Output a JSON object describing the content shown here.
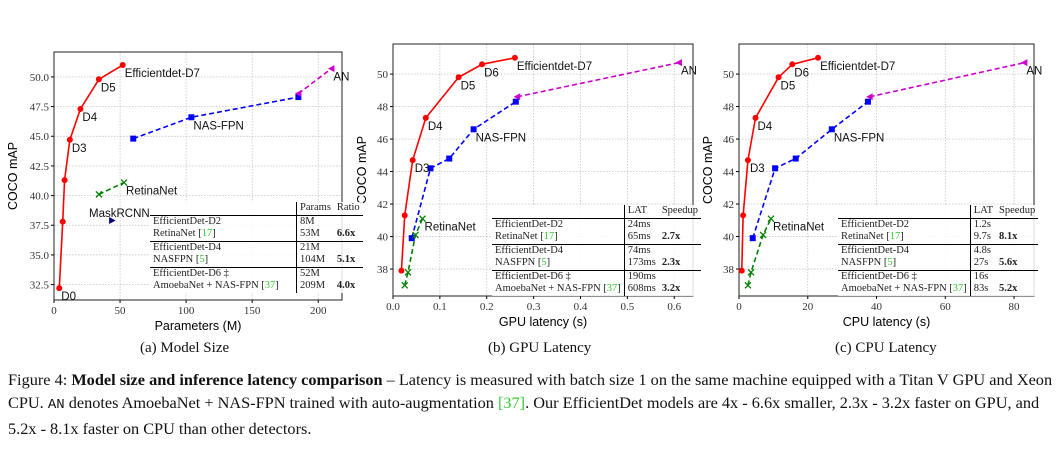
{
  "chart_data": [
    {
      "id": "a",
      "type": "line",
      "xlabel": "Parameters (M)",
      "ylabel": "COCO mAP",
      "xlim": [
        0,
        218
      ],
      "ylim": [
        31.2,
        52.1
      ],
      "xticks": [
        "0",
        "50",
        "100",
        "150",
        "200"
      ],
      "yticks": [
        "32.5",
        "35.0",
        "37.5",
        "40.0",
        "42.5",
        "45.0",
        "47.5",
        "50.0"
      ],
      "grid": true,
      "series": [
        {
          "name": "EfficientDet",
          "color": "#ff0000",
          "marker": "circle",
          "dash": false,
          "x": [
            4,
            6.6,
            8,
            12,
            20,
            34,
            52
          ],
          "y": [
            32.2,
            37.8,
            41.3,
            44.7,
            47.3,
            49.8,
            51.0
          ]
        },
        {
          "name": "NAS-FPN",
          "color": "#0000ff",
          "marker": "square",
          "dash": true,
          "x": [
            60,
            104,
            185
          ],
          "y": [
            44.8,
            46.6,
            48.3
          ]
        },
        {
          "name": "AN",
          "color": "#cc00cc",
          "marker": "triangle-left",
          "dash": true,
          "x": [
            185,
            210
          ],
          "y": [
            48.6,
            50.7
          ]
        },
        {
          "name": "RetinaNet",
          "color": "#008000",
          "marker": "x",
          "dash": true,
          "x": [
            34,
            53
          ],
          "y": [
            40.1,
            41.1
          ]
        },
        {
          "name": "MaskRCNN",
          "color": "#000080",
          "marker": "triangle-right",
          "dash": false,
          "x": [
            44
          ],
          "y": [
            37.9
          ]
        }
      ],
      "annotations": [
        {
          "text": "D0",
          "x": 4,
          "y": 32.2
        },
        {
          "text": "D3",
          "x": 12,
          "y": 44.7
        },
        {
          "text": "D4",
          "x": 20,
          "y": 47.3
        },
        {
          "text": "D5",
          "x": 34,
          "y": 49.8
        },
        {
          "text": "Efficientdet-D7",
          "x": 52,
          "y": 51.0
        },
        {
          "text": "NAS-FPN",
          "x": 104,
          "y": 46.6
        },
        {
          "text": "RetinaNet",
          "x": 53,
          "y": 41.1
        },
        {
          "text": "AN",
          "x": 210,
          "y": 50.7
        },
        {
          "text": "MaskRCNN",
          "x": 25,
          "y": 39.2
        }
      ],
      "table": {
        "headers": [
          "",
          "Params",
          "Ratio"
        ],
        "rows": [
          [
            "EfficientDet-D2",
            "",
            "8M",
            ""
          ],
          [
            "RetinaNet",
            "17",
            "53M",
            "6.6x"
          ],
          [
            "EfficientDet-D4",
            "",
            "21M",
            ""
          ],
          [
            "NASFPN",
            "5",
            "104M",
            "5.1x"
          ],
          [
            "EfficientDet-D6 ‡",
            "",
            "52M",
            ""
          ],
          [
            "AmoebaNet + NAS-FPN",
            "37",
            "209M",
            "4.0x"
          ]
        ]
      },
      "caption": "(a) Model Size"
    },
    {
      "id": "b",
      "type": "line",
      "xlabel": "GPU latency (s)",
      "ylabel": "COCO mAP",
      "xlim": [
        0,
        0.64
      ],
      "ylim": [
        36.34,
        51.85
      ],
      "xticks": [
        "0.0",
        "0.1",
        "0.2",
        "0.3",
        "0.4",
        "0.5",
        "0.6"
      ],
      "yticks": [
        "38",
        "40",
        "42",
        "44",
        "46",
        "48",
        "50"
      ],
      "grid": true,
      "series": [
        {
          "name": "EfficientDet",
          "color": "#ff0000",
          "marker": "circle",
          "dash": false,
          "x": [
            0.018,
            0.025,
            0.042,
            0.07,
            0.14,
            0.19,
            0.26
          ],
          "y": [
            37.9,
            41.3,
            44.7,
            47.3,
            49.8,
            50.6,
            51.0
          ]
        },
        {
          "name": "NAS-FPN",
          "color": "#0000ff",
          "marker": "square",
          "dash": true,
          "x": [
            0.04,
            0.08,
            0.12,
            0.172,
            0.262
          ],
          "y": [
            39.9,
            44.2,
            44.8,
            46.6,
            48.3
          ]
        },
        {
          "name": "AN",
          "color": "#cc00cc",
          "marker": "triangle-left",
          "dash": true,
          "x": [
            0.265,
            0.61
          ],
          "y": [
            48.6,
            50.7
          ]
        },
        {
          "name": "RetinaNet",
          "color": "#008000",
          "marker": "x",
          "dash": true,
          "x": [
            0.025,
            0.032,
            0.048,
            0.063
          ],
          "y": [
            37.0,
            37.8,
            40.1,
            41.1
          ]
        }
      ],
      "annotations": [
        {
          "text": "D3",
          "x": 0.042,
          "y": 44.7
        },
        {
          "text": "D4",
          "x": 0.07,
          "y": 47.3
        },
        {
          "text": "D5",
          "x": 0.14,
          "y": 49.8
        },
        {
          "text": "D6",
          "x": 0.19,
          "y": 50.6
        },
        {
          "text": "Efficientdet-D7",
          "x": 0.26,
          "y": 51.0
        },
        {
          "text": "NAS-FPN",
          "x": 0.172,
          "y": 46.6
        },
        {
          "text": "RetinaNet",
          "x": 0.063,
          "y": 41.1
        },
        {
          "text": "AN",
          "x": 0.61,
          "y": 50.7
        }
      ],
      "table": {
        "headers": [
          "",
          "LAT",
          "Speedup"
        ],
        "rows": [
          [
            "EfficientDet-D2",
            "",
            "24ms",
            ""
          ],
          [
            "RetinaNet",
            "17",
            "65ms",
            "2.7x"
          ],
          [
            "EfficientDet-D4",
            "",
            "74ms",
            ""
          ],
          [
            "NASFPN",
            "5",
            "173ms",
            "2.3x"
          ],
          [
            "EfficientDet-D6 ‡",
            "",
            "190ms",
            ""
          ],
          [
            "AmoebaNet + NAS-FPN",
            "37",
            "608ms",
            "3.2x"
          ]
        ]
      },
      "caption": "(b) GPU Latency"
    },
    {
      "id": "c",
      "type": "line",
      "xlabel": "CPU latency (s)",
      "ylabel": "COCO mAP",
      "xlim": [
        0,
        85.8
      ],
      "ylim": [
        36.34,
        51.85
      ],
      "xticks": [
        "0",
        "20",
        "40",
        "60",
        "80"
      ],
      "yticks": [
        "38",
        "40",
        "42",
        "44",
        "46",
        "48",
        "50"
      ],
      "grid": true,
      "series": [
        {
          "name": "EfficientDet",
          "color": "#ff0000",
          "marker": "circle",
          "dash": false,
          "x": [
            0.8,
            1.2,
            2.6,
            4.8,
            11.5,
            15.5,
            23
          ],
          "y": [
            37.9,
            41.3,
            44.7,
            47.3,
            49.8,
            50.6,
            51.0
          ]
        },
        {
          "name": "NAS-FPN",
          "color": "#0000ff",
          "marker": "square",
          "dash": true,
          "x": [
            4,
            10.5,
            16.5,
            27,
            37.5
          ],
          "y": [
            39.9,
            44.2,
            44.8,
            46.6,
            48.3
          ]
        },
        {
          "name": "AN",
          "color": "#cc00cc",
          "marker": "triangle-left",
          "dash": true,
          "x": [
            38,
            83
          ],
          "y": [
            48.6,
            50.7
          ]
        },
        {
          "name": "RetinaNet",
          "color": "#008000",
          "marker": "x",
          "dash": true,
          "x": [
            2.6,
            3.5,
            7,
            9.3
          ],
          "y": [
            37.0,
            37.8,
            40.1,
            41.1
          ]
        }
      ],
      "annotations": [
        {
          "text": "D3",
          "x": 2.6,
          "y": 44.7
        },
        {
          "text": "D4",
          "x": 4.8,
          "y": 47.3
        },
        {
          "text": "D5",
          "x": 11.5,
          "y": 49.8
        },
        {
          "text": "D6",
          "x": 15.5,
          "y": 50.6
        },
        {
          "text": "Efficientdet-D7",
          "x": 23,
          "y": 51.0
        },
        {
          "text": "NAS-FPN",
          "x": 27,
          "y": 46.6
        },
        {
          "text": "RetinaNet",
          "x": 9.3,
          "y": 41.1
        },
        {
          "text": "AN",
          "x": 83,
          "y": 50.7
        }
      ],
      "table": {
        "headers": [
          "",
          "LAT",
          "Speedup"
        ],
        "rows": [
          [
            "EfficientDet-D2",
            "",
            "1.2s",
            ""
          ],
          [
            "RetinaNet",
            "17",
            "9.7s",
            "8.1x"
          ],
          [
            "EfficientDet-D4",
            "",
            "4.8s",
            ""
          ],
          [
            "NASFPN",
            "5",
            "27s",
            "5.6x"
          ],
          [
            "EfficientDet-D6 ‡",
            "",
            "16s",
            ""
          ],
          [
            "AmoebaNet + NAS-FPN",
            "37",
            "83s",
            "5.2x"
          ]
        ]
      },
      "caption": "(c) CPU Latency"
    }
  ],
  "figure_caption": {
    "label": "Figure 4: ",
    "title": "Model size and inference latency comparison",
    "t1": " – Latency is measured with batch size 1 on the same machine equipped with a Titan V GPU and Xeon CPU. ",
    "an": "AN",
    "t2": " denotes AmoebaNet + NAS-FPN trained with auto-augmentation ",
    "ref": "[37]",
    "t3": ". Our EfficientDet models are 4x - 6.6x smaller, 2.3x - 3.2x faster on GPU, and 5.2x - 8.1x faster on CPU than other detectors."
  }
}
